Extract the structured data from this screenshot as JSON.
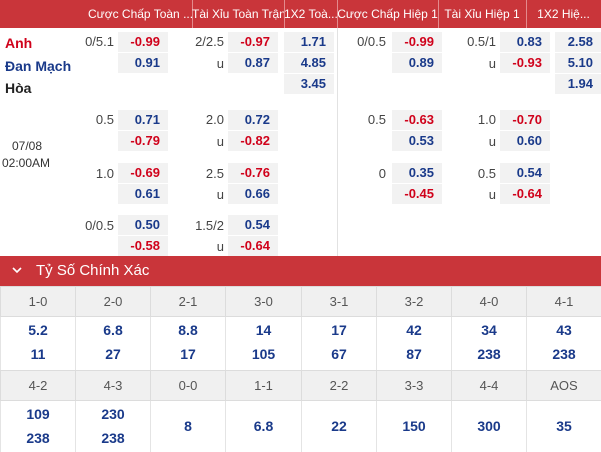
{
  "header": {
    "cols": [
      "Cược Chấp Toàn ...",
      "Tài Xỉu Toàn Trận",
      "1X2 Toà...",
      "Cược Chấp Hiệp 1",
      "Tài Xỉu Hiệp 1",
      "1X2 Hiệ..."
    ]
  },
  "match": {
    "home": "Anh",
    "away": "Đan Mạch",
    "draw": "Hòa",
    "date": "07/08",
    "time": "02:00AM"
  },
  "odds": {
    "r1": {
      "ah_line": "0/5.1",
      "ah_home": "-0.99",
      "ah_away": "0.91",
      "ou_line": "2/2.5",
      "ou_over": "-0.97",
      "u1": "u",
      "ou_under": "0.87",
      "x_home": "1.71",
      "x_away": "4.85",
      "x_draw": "3.45",
      "h_line": "0/0.5",
      "h_home": "-0.99",
      "h_away": "0.89",
      "hou_line": "0.5/1",
      "hou_over": "0.83",
      "u2": "u",
      "hou_under": "-0.93",
      "hx_home": "2.58",
      "hx_away": "5.10",
      "hx_draw": "1.94"
    },
    "r2": {
      "ah_line": "0.5",
      "ah_home": "0.71",
      "ah_away": "-0.79",
      "ou_line": "2.0",
      "ou_over": "0.72",
      "u1": "u",
      "ou_under": "-0.82",
      "h_line": "0.5",
      "h_home": "-0.63",
      "h_away": "0.53",
      "hou_line": "1.0",
      "hou_over": "-0.70",
      "u2": "u",
      "hou_under": "0.60"
    },
    "r3": {
      "ah_line": "1.0",
      "ah_home": "-0.69",
      "ah_away": "0.61",
      "ou_line": "2.5",
      "ou_over": "-0.76",
      "u1": "u",
      "ou_under": "0.66",
      "h_line": "0",
      "h_home": "0.35",
      "h_away": "-0.45",
      "hou_line": "0.5",
      "hou_over": "0.54",
      "u2": "u",
      "hou_under": "-0.64"
    },
    "r4": {
      "ah_line": "0/0.5",
      "ah_home": "0.50",
      "ah_away": "-0.58",
      "ou_line": "1.5/2",
      "ou_over": "0.54",
      "u1": "u",
      "ou_under": "-0.64"
    }
  },
  "section": {
    "title": "Tỷ Số Chính Xác",
    "icon": "chevron-down-icon"
  },
  "scores1": {
    "headers": [
      "1-0",
      "2-0",
      "2-1",
      "3-0",
      "3-1",
      "3-2",
      "4-0",
      "4-1"
    ],
    "top": [
      "5.2",
      "6.8",
      "8.8",
      "14",
      "17",
      "42",
      "34",
      "43"
    ],
    "bottom": [
      "11",
      "27",
      "17",
      "105",
      "67",
      "87",
      "238",
      "238"
    ]
  },
  "scores2": {
    "headers": [
      "4-2",
      "4-3",
      "0-0",
      "1-1",
      "2-2",
      "3-3",
      "4-4",
      "AOS"
    ],
    "top": [
      "109",
      "230"
    ],
    "bottom": [
      "238",
      "238"
    ],
    "single": [
      "8",
      "6.8",
      "22",
      "150",
      "300",
      "35"
    ]
  },
  "colors": {
    "header_bg": "#c9353a",
    "odds_red": "#d0021b",
    "odds_blue": "#1a3a8a",
    "cell_bg": "#f2f2f2"
  }
}
